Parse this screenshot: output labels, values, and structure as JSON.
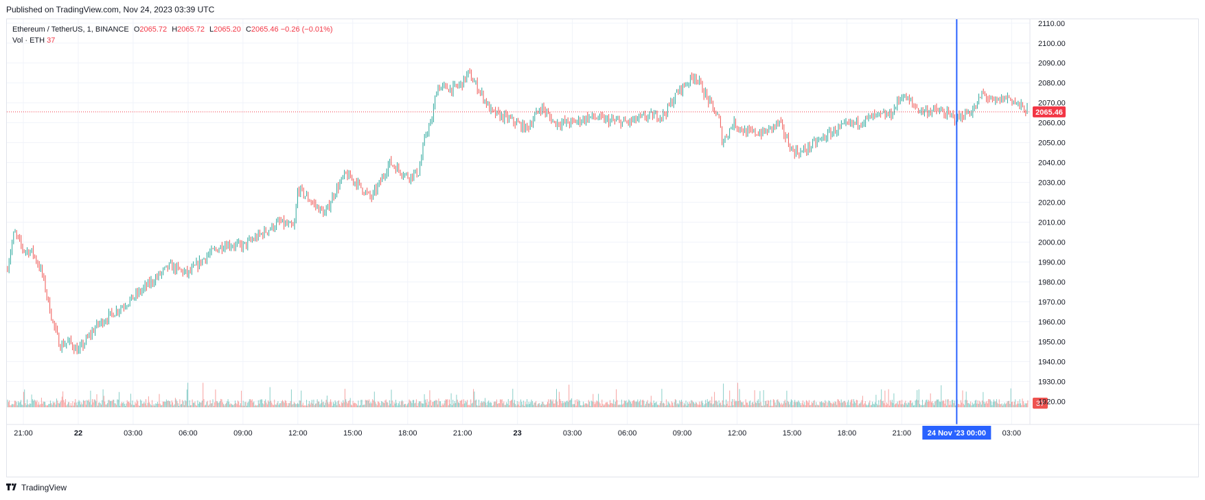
{
  "header": {
    "published": "Published on TradingView.com, Nov 24, 2023 03:39 UTC"
  },
  "legend": {
    "symbol": "Ethereum / TetherUS, 1, BINANCE",
    "o_label": "O",
    "o_value": "2065.72",
    "h_label": "H",
    "h_value": "2065.72",
    "l_label": "L",
    "l_value": "2065.20",
    "c_label": "C",
    "c_value": "2065.46",
    "change": "−0.26 (−0.01%)",
    "vol_label": "Vol · ETH",
    "vol_value": "37"
  },
  "footer": {
    "logo_text": "TradingView",
    "logo_icon": "tradingview-logo-icon"
  },
  "colors": {
    "up": "#26a69a",
    "down": "#ef5350",
    "crosshair": "#2962ff",
    "price_line": "#f23645",
    "grid": "#f0f3fa"
  },
  "chart_data": {
    "type": "candlestick",
    "symbol": "Ethereum / TetherUS",
    "interval": "1",
    "exchange": "BINANCE",
    "y_ticks": [
      "2110.00",
      "2100.00",
      "2090.00",
      "2080.00",
      "2070.00",
      "2060.00",
      "2050.00",
      "2040.00",
      "2030.00",
      "2020.00",
      "2010.00",
      "2000.00",
      "1990.00",
      "1980.00",
      "1970.00",
      "1960.00",
      "1950.00",
      "1940.00",
      "1930.00",
      "1920.00"
    ],
    "ylim": [
      1917,
      2112
    ],
    "x_ticks": [
      {
        "label": "21:00",
        "bold": false
      },
      {
        "label": "22",
        "bold": true
      },
      {
        "label": "03:00",
        "bold": false
      },
      {
        "label": "06:00",
        "bold": false
      },
      {
        "label": "09:00",
        "bold": false
      },
      {
        "label": "12:00",
        "bold": false
      },
      {
        "label": "15:00",
        "bold": false
      },
      {
        "label": "18:00",
        "bold": false
      },
      {
        "label": "21:00",
        "bold": false
      },
      {
        "label": "23",
        "bold": true
      },
      {
        "label": "03:00",
        "bold": false
      },
      {
        "label": "06:00",
        "bold": false
      },
      {
        "label": "09:00",
        "bold": false
      },
      {
        "label": "12:00",
        "bold": false
      },
      {
        "label": "15:00",
        "bold": false
      },
      {
        "label": "18:00",
        "bold": false
      },
      {
        "label": "21:00",
        "bold": false
      },
      {
        "label": "03:00",
        "bold": false
      }
    ],
    "x_hours": [
      21,
      24,
      27,
      30,
      33,
      36,
      39,
      42,
      45,
      48,
      51,
      54,
      57,
      60,
      63,
      66,
      69,
      75
    ],
    "x_range_hours": [
      20.1,
      76.0
    ],
    "crosshair": {
      "label": "24 Nov '23   00:00",
      "hour": 72
    },
    "last_price": {
      "label": "2065.46",
      "value": 2065.46
    },
    "last_volume": {
      "label": "37",
      "value": 37
    },
    "price_path": [
      {
        "h": 20.1,
        "p": 1986
      },
      {
        "h": 20.5,
        "p": 2005
      },
      {
        "h": 21.0,
        "p": 1996
      },
      {
        "h": 21.5,
        "p": 1995
      },
      {
        "h": 22.0,
        "p": 1985
      },
      {
        "h": 22.6,
        "p": 1960
      },
      {
        "h": 23.0,
        "p": 1948
      },
      {
        "h": 23.5,
        "p": 1950
      },
      {
        "h": 24.0,
        "p": 1945
      },
      {
        "h": 25.0,
        "p": 1958
      },
      {
        "h": 26.0,
        "p": 1965
      },
      {
        "h": 27.0,
        "p": 1972
      },
      {
        "h": 28.0,
        "p": 1980
      },
      {
        "h": 29.0,
        "p": 1988
      },
      {
        "h": 30.0,
        "p": 1984
      },
      {
        "h": 31.0,
        "p": 1993
      },
      {
        "h": 32.0,
        "p": 1999
      },
      {
        "h": 33.0,
        "p": 1998
      },
      {
        "h": 34.0,
        "p": 2004
      },
      {
        "h": 35.0,
        "p": 2010
      },
      {
        "h": 35.8,
        "p": 2007
      },
      {
        "h": 36.0,
        "p": 2027
      },
      {
        "h": 37.0,
        "p": 2018
      },
      {
        "h": 37.5,
        "p": 2014
      },
      {
        "h": 38.0,
        "p": 2025
      },
      {
        "h": 38.6,
        "p": 2034
      },
      {
        "h": 39.2,
        "p": 2030
      },
      {
        "h": 40.0,
        "p": 2022
      },
      {
        "h": 40.5,
        "p": 2030
      },
      {
        "h": 41.0,
        "p": 2040
      },
      {
        "h": 42.0,
        "p": 2033
      },
      {
        "h": 42.6,
        "p": 2035
      },
      {
        "h": 43.0,
        "p": 2055
      },
      {
        "h": 43.3,
        "p": 2060
      },
      {
        "h": 43.6,
        "p": 2078
      },
      {
        "h": 44.5,
        "p": 2077
      },
      {
        "h": 45.0,
        "p": 2080
      },
      {
        "h": 45.3,
        "p": 2085
      },
      {
        "h": 46.0,
        "p": 2075
      },
      {
        "h": 46.6,
        "p": 2065
      },
      {
        "h": 47.5,
        "p": 2062
      },
      {
        "h": 48.5,
        "p": 2057
      },
      {
        "h": 49.3,
        "p": 2068
      },
      {
        "h": 50.0,
        "p": 2060
      },
      {
        "h": 51.0,
        "p": 2060
      },
      {
        "h": 52.0,
        "p": 2063
      },
      {
        "h": 53.0,
        "p": 2061
      },
      {
        "h": 54.0,
        "p": 2060
      },
      {
        "h": 55.0,
        "p": 2063
      },
      {
        "h": 56.0,
        "p": 2064
      },
      {
        "h": 56.8,
        "p": 2076
      },
      {
        "h": 57.7,
        "p": 2084
      },
      {
        "h": 58.5,
        "p": 2070
      },
      {
        "h": 59.0,
        "p": 2062
      },
      {
        "h": 59.2,
        "p": 2050
      },
      {
        "h": 59.8,
        "p": 2060
      },
      {
        "h": 60.5,
        "p": 2055
      },
      {
        "h": 61.5,
        "p": 2055
      },
      {
        "h": 62.3,
        "p": 2060
      },
      {
        "h": 63.0,
        "p": 2046
      },
      {
        "h": 63.5,
        "p": 2045
      },
      {
        "h": 64.3,
        "p": 2050
      },
      {
        "h": 65.5,
        "p": 2057
      },
      {
        "h": 66.5,
        "p": 2060
      },
      {
        "h": 67.5,
        "p": 2063
      },
      {
        "h": 68.4,
        "p": 2064
      },
      {
        "h": 69.0,
        "p": 2074
      },
      {
        "h": 70.0,
        "p": 2066
      },
      {
        "h": 71.0,
        "p": 2066
      },
      {
        "h": 72.0,
        "p": 2062
      },
      {
        "h": 73.0,
        "p": 2067
      },
      {
        "h": 73.4,
        "p": 2075
      },
      {
        "h": 74.0,
        "p": 2070
      },
      {
        "h": 74.8,
        "p": 2073
      },
      {
        "h": 75.5,
        "p": 2068
      },
      {
        "h": 75.9,
        "p": 2065.46
      }
    ],
    "volume_spikes": [
      {
        "h": 22.8,
        "v": 255
      },
      {
        "h": 23.1,
        "v": 310
      },
      {
        "h": 23.7,
        "v": 175
      },
      {
        "h": 27.9,
        "v": 145
      },
      {
        "h": 37.6,
        "v": 340
      },
      {
        "h": 38.6,
        "v": 200
      },
      {
        "h": 40.2,
        "v": 250
      },
      {
        "h": 43.2,
        "v": 495
      },
      {
        "h": 44.3,
        "v": 265
      },
      {
        "h": 46.2,
        "v": 270
      },
      {
        "h": 59.6,
        "v": 488
      },
      {
        "h": 59.4,
        "v": 190
      },
      {
        "h": 63.1,
        "v": 155
      },
      {
        "h": 73.3,
        "v": 150
      },
      {
        "h": 75.9,
        "v": 200
      }
    ]
  }
}
